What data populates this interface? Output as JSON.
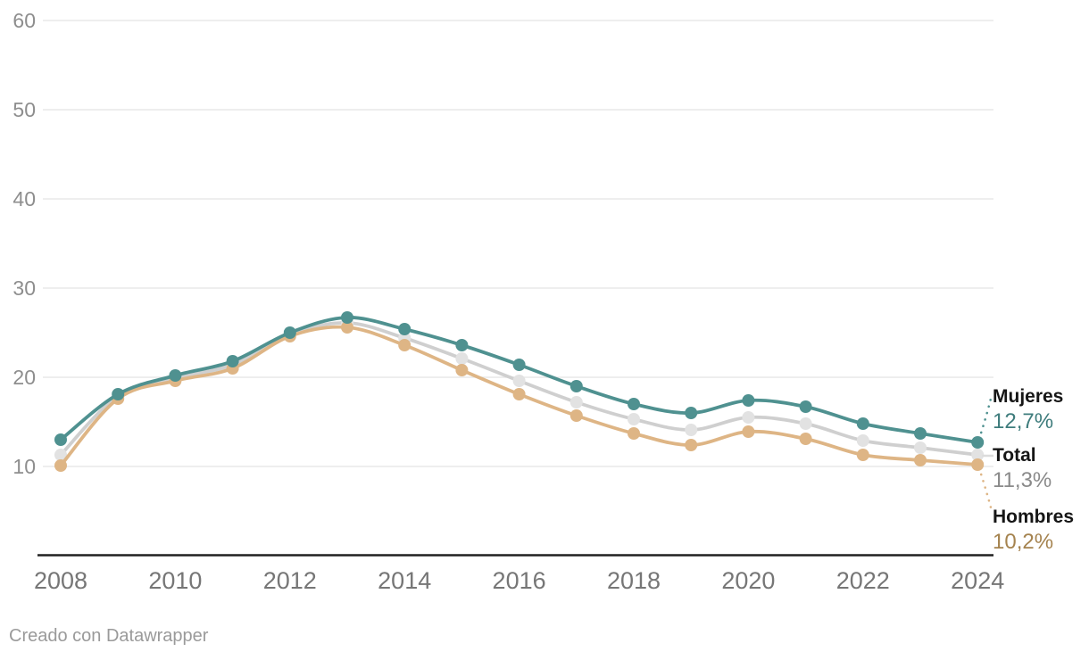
{
  "footer": {
    "credit": "Creado con Datawrapper"
  },
  "chart_data": {
    "type": "line",
    "title": "",
    "xlabel": "",
    "ylabel": "",
    "unit": "%",
    "grid": true,
    "legend_position": "direct-labels-right",
    "x": [
      2008,
      2009,
      2010,
      2011,
      2012,
      2013,
      2014,
      2015,
      2016,
      2017,
      2018,
      2019,
      2020,
      2021,
      2022,
      2023,
      2024
    ],
    "x_ticks": [
      2008,
      2010,
      2012,
      2014,
      2016,
      2018,
      2020,
      2022,
      2024
    ],
    "y_ticks": [
      10,
      20,
      30,
      40,
      50,
      60
    ],
    "ylim": [
      0,
      62
    ],
    "series": [
      {
        "name": "Mujeres",
        "end_label": "12,7%",
        "color": "#4f9190",
        "point_color": "#4f9190",
        "label_color": "#3e7c7c",
        "values": [
          13.0,
          18.1,
          20.2,
          21.8,
          25.0,
          26.7,
          25.4,
          23.6,
          21.4,
          19.0,
          17.0,
          16.0,
          17.4,
          16.7,
          14.8,
          13.7,
          12.7
        ]
      },
      {
        "name": "Total",
        "end_label": "11,3%",
        "color": "#cfcfcf",
        "point_color": "#e2e2e2",
        "label_color": "#8a8a8a",
        "values": [
          11.3,
          17.9,
          19.9,
          21.4,
          24.8,
          26.1,
          24.4,
          22.1,
          19.6,
          17.2,
          15.3,
          14.1,
          15.5,
          14.8,
          12.9,
          12.1,
          11.3
        ]
      },
      {
        "name": "Hombres",
        "end_label": "10,2%",
        "color": "#deb585",
        "point_color": "#deb585",
        "label_color": "#a5834f",
        "values": [
          10.1,
          17.6,
          19.6,
          21.0,
          24.6,
          25.6,
          23.6,
          20.8,
          18.1,
          15.7,
          13.7,
          12.4,
          13.9,
          13.1,
          11.3,
          10.7,
          10.2
        ]
      }
    ]
  }
}
